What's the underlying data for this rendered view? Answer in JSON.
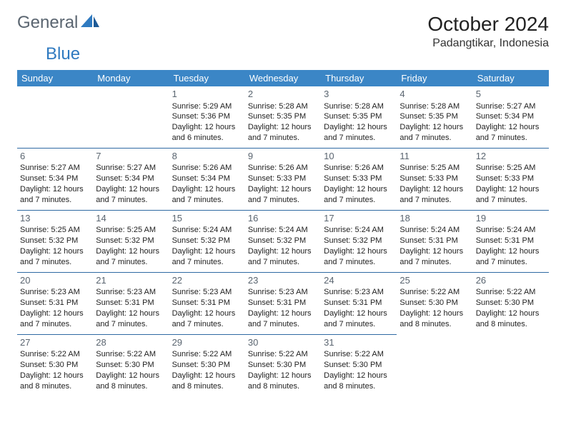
{
  "logo": {
    "text1": "General",
    "text2": "Blue"
  },
  "title": "October 2024",
  "location": "Padangtikar, Indonesia",
  "colors": {
    "header_bg": "#3b86c6",
    "header_text": "#ffffff",
    "row_border": "#2f6aa3",
    "daynum": "#5a6570",
    "logo_gray": "#5a6570",
    "logo_blue": "#2f7ac0"
  },
  "day_headers": [
    "Sunday",
    "Monday",
    "Tuesday",
    "Wednesday",
    "Thursday",
    "Friday",
    "Saturday"
  ],
  "weeks": [
    [
      null,
      null,
      {
        "n": "1",
        "sr": "5:29 AM",
        "ss": "5:36 PM",
        "dl": "12 hours and 6 minutes."
      },
      {
        "n": "2",
        "sr": "5:28 AM",
        "ss": "5:35 PM",
        "dl": "12 hours and 7 minutes."
      },
      {
        "n": "3",
        "sr": "5:28 AM",
        "ss": "5:35 PM",
        "dl": "12 hours and 7 minutes."
      },
      {
        "n": "4",
        "sr": "5:28 AM",
        "ss": "5:35 PM",
        "dl": "12 hours and 7 minutes."
      },
      {
        "n": "5",
        "sr": "5:27 AM",
        "ss": "5:34 PM",
        "dl": "12 hours and 7 minutes."
      }
    ],
    [
      {
        "n": "6",
        "sr": "5:27 AM",
        "ss": "5:34 PM",
        "dl": "12 hours and 7 minutes."
      },
      {
        "n": "7",
        "sr": "5:27 AM",
        "ss": "5:34 PM",
        "dl": "12 hours and 7 minutes."
      },
      {
        "n": "8",
        "sr": "5:26 AM",
        "ss": "5:34 PM",
        "dl": "12 hours and 7 minutes."
      },
      {
        "n": "9",
        "sr": "5:26 AM",
        "ss": "5:33 PM",
        "dl": "12 hours and 7 minutes."
      },
      {
        "n": "10",
        "sr": "5:26 AM",
        "ss": "5:33 PM",
        "dl": "12 hours and 7 minutes."
      },
      {
        "n": "11",
        "sr": "5:25 AM",
        "ss": "5:33 PM",
        "dl": "12 hours and 7 minutes."
      },
      {
        "n": "12",
        "sr": "5:25 AM",
        "ss": "5:33 PM",
        "dl": "12 hours and 7 minutes."
      }
    ],
    [
      {
        "n": "13",
        "sr": "5:25 AM",
        "ss": "5:32 PM",
        "dl": "12 hours and 7 minutes."
      },
      {
        "n": "14",
        "sr": "5:25 AM",
        "ss": "5:32 PM",
        "dl": "12 hours and 7 minutes."
      },
      {
        "n": "15",
        "sr": "5:24 AM",
        "ss": "5:32 PM",
        "dl": "12 hours and 7 minutes."
      },
      {
        "n": "16",
        "sr": "5:24 AM",
        "ss": "5:32 PM",
        "dl": "12 hours and 7 minutes."
      },
      {
        "n": "17",
        "sr": "5:24 AM",
        "ss": "5:32 PM",
        "dl": "12 hours and 7 minutes."
      },
      {
        "n": "18",
        "sr": "5:24 AM",
        "ss": "5:31 PM",
        "dl": "12 hours and 7 minutes."
      },
      {
        "n": "19",
        "sr": "5:24 AM",
        "ss": "5:31 PM",
        "dl": "12 hours and 7 minutes."
      }
    ],
    [
      {
        "n": "20",
        "sr": "5:23 AM",
        "ss": "5:31 PM",
        "dl": "12 hours and 7 minutes."
      },
      {
        "n": "21",
        "sr": "5:23 AM",
        "ss": "5:31 PM",
        "dl": "12 hours and 7 minutes."
      },
      {
        "n": "22",
        "sr": "5:23 AM",
        "ss": "5:31 PM",
        "dl": "12 hours and 7 minutes."
      },
      {
        "n": "23",
        "sr": "5:23 AM",
        "ss": "5:31 PM",
        "dl": "12 hours and 7 minutes."
      },
      {
        "n": "24",
        "sr": "5:23 AM",
        "ss": "5:31 PM",
        "dl": "12 hours and 7 minutes."
      },
      {
        "n": "25",
        "sr": "5:22 AM",
        "ss": "5:30 PM",
        "dl": "12 hours and 8 minutes."
      },
      {
        "n": "26",
        "sr": "5:22 AM",
        "ss": "5:30 PM",
        "dl": "12 hours and 8 minutes."
      }
    ],
    [
      {
        "n": "27",
        "sr": "5:22 AM",
        "ss": "5:30 PM",
        "dl": "12 hours and 8 minutes."
      },
      {
        "n": "28",
        "sr": "5:22 AM",
        "ss": "5:30 PM",
        "dl": "12 hours and 8 minutes."
      },
      {
        "n": "29",
        "sr": "5:22 AM",
        "ss": "5:30 PM",
        "dl": "12 hours and 8 minutes."
      },
      {
        "n": "30",
        "sr": "5:22 AM",
        "ss": "5:30 PM",
        "dl": "12 hours and 8 minutes."
      },
      {
        "n": "31",
        "sr": "5:22 AM",
        "ss": "5:30 PM",
        "dl": "12 hours and 8 minutes."
      },
      null,
      null
    ]
  ],
  "labels": {
    "sunrise": "Sunrise:",
    "sunset": "Sunset:",
    "daylight": "Daylight:"
  }
}
